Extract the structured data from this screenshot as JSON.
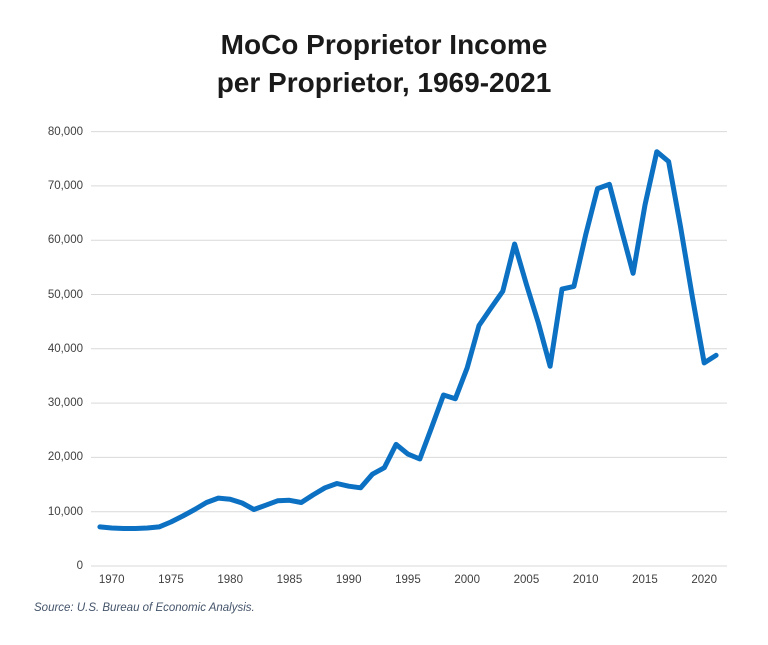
{
  "title": {
    "line1": "MoCo Proprietor Income",
    "line2": "per Proprietor, 1969-2021"
  },
  "source": "Source: U.S. Bureau of Economic Analysis.",
  "colors": {
    "line": "#0C71C3",
    "gridline": "#D9D9D9",
    "title_text": "#1A1A1A",
    "tick_text": "#404040",
    "source_text": "#44546A",
    "background": "#FFFFFF"
  },
  "chart_data": {
    "type": "line",
    "title": "MoCo Proprietor Income per Proprietor, 1969-2021",
    "series_name": "Proprietor income per proprietor (dollars)",
    "xlabel": "",
    "ylabel": "",
    "ylim": [
      0,
      80000
    ],
    "grid": "horizontal",
    "legend": "none",
    "y_ticks": [
      0,
      10000,
      20000,
      30000,
      40000,
      50000,
      60000,
      70000,
      80000
    ],
    "y_tick_labels": [
      "0",
      "10,000",
      "20,000",
      "30,000",
      "40,000",
      "50,000",
      "60,000",
      "70,000",
      "80,000"
    ],
    "x_ticks": [
      1970,
      1975,
      1980,
      1985,
      1990,
      1995,
      2000,
      2005,
      2010,
      2015,
      2020
    ],
    "x_tick_labels": [
      "1970",
      "1975",
      "1980",
      "1985",
      "1990",
      "1995",
      "2000",
      "2005",
      "2010",
      "2015",
      "2020"
    ],
    "x": [
      1969,
      1970,
      1971,
      1972,
      1973,
      1974,
      1975,
      1976,
      1977,
      1978,
      1979,
      1980,
      1981,
      1982,
      1983,
      1984,
      1985,
      1986,
      1987,
      1988,
      1989,
      1990,
      1991,
      1992,
      1993,
      1994,
      1995,
      1996,
      1997,
      1998,
      1999,
      2000,
      2001,
      2002,
      2003,
      2004,
      2005,
      2006,
      2007,
      2008,
      2009,
      2010,
      2011,
      2012,
      2013,
      2014,
      2015,
      2016,
      2017,
      2018,
      2019,
      2020,
      2021
    ],
    "values": [
      7200,
      7000,
      6900,
      6900,
      7000,
      7200,
      8100,
      9200,
      10400,
      11700,
      12500,
      12300,
      11600,
      10400,
      11200,
      12000,
      12100,
      11700,
      13100,
      14400,
      15200,
      14700,
      14400,
      16900,
      18100,
      22400,
      20600,
      19700,
      25500,
      31500,
      30800,
      36500,
      44300,
      47500,
      50600,
      59300,
      51800,
      44800,
      36800,
      51000,
      51500,
      61000,
      69500,
      70300,
      62000,
      53900,
      66500,
      76300,
      74500,
      62500,
      49500,
      37400,
      38800
    ]
  }
}
